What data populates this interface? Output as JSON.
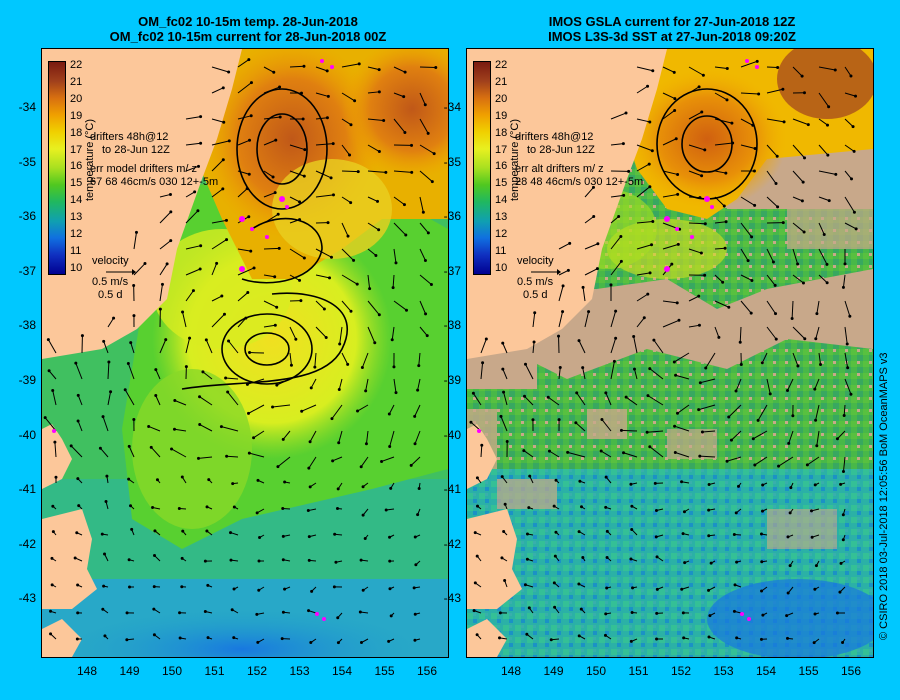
{
  "panels": [
    {
      "title_line1": "OM_fc02 10-15m temp. 28-Jun-2018",
      "title_line2": "OM_fc02 10-15m current for 28-Jun-2018 00Z",
      "drifters_line1": "drifters 48h@12",
      "drifters_line2": "to 28-Jun 12Z",
      "err_line1": "err model drifters m/ z",
      "err_line2": "67 68 46cm/s 030 12+-5m",
      "velocity_label": "velocity",
      "velocity_scale": "0.5 m/s",
      "velocity_time": "0.5 d"
    },
    {
      "title_line1": "IMOS GSLA current for 27-Jun-2018 12Z",
      "title_line2": "IMOS L3S-3d SST at 27-Jun-2018 09:20Z",
      "drifters_line1": "drifters 48h@12",
      "drifters_line2": "to 28-Jun 12Z",
      "err_line1": "err alt drifters m/ z",
      "err_line2": "28 48 46cm/s 030 12+-5m",
      "velocity_label": "velocity",
      "velocity_scale": "0.5 m/s",
      "velocity_time": "0.5 d"
    }
  ],
  "colorbar": {
    "title": "temperature (°C)",
    "ticks": [
      "22",
      "21",
      "20",
      "19",
      "18",
      "17",
      "16",
      "15",
      "14",
      "13",
      "12",
      "11",
      "10"
    ],
    "colors": [
      "#7a1a10",
      "#a0401c",
      "#d87010",
      "#f0a000",
      "#f0d000",
      "#e8f020",
      "#a8e020",
      "#50c820",
      "#20b860",
      "#10a0b0",
      "#1070e0",
      "#1030c0",
      "#000090"
    ]
  },
  "lat_ticks": [
    "-34",
    "-35",
    "-36",
    "-37",
    "-38",
    "-39",
    "-40",
    "-41",
    "-42",
    "-43"
  ],
  "lon_ticks": [
    "148",
    "149",
    "150",
    "151",
    "152",
    "153",
    "154",
    "155",
    "156"
  ],
  "credit": "© CSIRO 2018   03-Jul-2018 12:05:56 BoM OceanMAPS v3",
  "colors": {
    "background": "#00c8ff",
    "land": "#fcc79a",
    "cloud": "#c8a88a",
    "drifter": "#ff00ff"
  }
}
